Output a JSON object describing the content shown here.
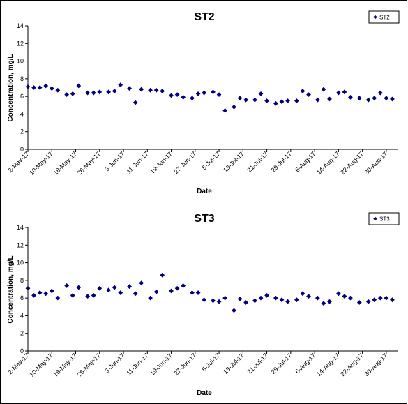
{
  "chart_data": [
    {
      "type": "scatter",
      "title": "ST2",
      "xlabel": "Date",
      "ylabel": "Concentration, mg/L",
      "ylim": [
        0,
        14
      ],
      "yticks": [
        0,
        2,
        4,
        6,
        8,
        10,
        12,
        14
      ],
      "xlim": [
        "2-May-17",
        "3-Sep-17"
      ],
      "xticks": [
        "2-May-17",
        "10-May-17",
        "18-May-17",
        "26-May-17",
        "3-Jun-17",
        "11-Jun-17",
        "19-Jun-17",
        "27-Jun-17",
        "5-Jul-17",
        "13-Jul-17",
        "21-Jul-17",
        "29-Jul-17",
        "6-Aug-17",
        "14-Aug-17",
        "22-Aug-17",
        "30-Aug-17"
      ],
      "grid": false,
      "legend_position": "top-right",
      "color": "#000080",
      "series": [
        {
          "name": "ST2",
          "x": [
            "2-May-17",
            "4-May-17",
            "6-May-17",
            "8-May-17",
            "10-May-17",
            "12-May-17",
            "15-May-17",
            "17-May-17",
            "19-May-17",
            "22-May-17",
            "24-May-17",
            "26-May-17",
            "29-May-17",
            "31-May-17",
            "2-Jun-17",
            "5-Jun-17",
            "7-Jun-17",
            "9-Jun-17",
            "12-Jun-17",
            "14-Jun-17",
            "16-Jun-17",
            "19-Jun-17",
            "21-Jun-17",
            "23-Jun-17",
            "26-Jun-17",
            "28-Jun-17",
            "30-Jun-17",
            "3-Jul-17",
            "5-Jul-17",
            "7-Jul-17",
            "10-Jul-17",
            "12-Jul-17",
            "14-Jul-17",
            "17-Jul-17",
            "19-Jul-17",
            "21-Jul-17",
            "24-Jul-17",
            "26-Jul-17",
            "28-Jul-17",
            "31-Jul-17",
            "2-Aug-17",
            "4-Aug-17",
            "7-Aug-17",
            "9-Aug-17",
            "11-Aug-17",
            "14-Aug-17",
            "16-Aug-17",
            "18-Aug-17",
            "21-Aug-17",
            "24-Aug-17",
            "26-Aug-17",
            "28-Aug-17",
            "30-Aug-17",
            "1-Sep-17"
          ],
          "y": [
            7.1,
            7.0,
            7.0,
            7.2,
            6.9,
            6.7,
            6.2,
            6.3,
            7.2,
            6.4,
            6.4,
            6.5,
            6.5,
            6.6,
            7.3,
            6.9,
            5.3,
            6.8,
            6.7,
            6.7,
            6.6,
            6.1,
            6.2,
            5.9,
            5.8,
            6.3,
            6.4,
            6.5,
            6.2,
            4.4,
            4.8,
            5.8,
            5.6,
            5.6,
            6.3,
            5.5,
            5.2,
            5.4,
            5.5,
            5.5,
            6.6,
            6.2,
            5.6,
            6.8,
            5.7,
            6.4,
            6.5,
            5.9,
            5.8,
            5.6,
            5.8,
            6.4,
            5.8,
            5.7
          ]
        }
      ]
    },
    {
      "type": "scatter",
      "title": "ST3",
      "xlabel": "Date",
      "ylabel": "Concentration, mg/L",
      "ylim": [
        0,
        14
      ],
      "yticks": [
        0,
        2,
        4,
        6,
        8,
        10,
        12,
        14
      ],
      "xlim": [
        "2-May-17",
        "3-Sep-17"
      ],
      "xticks": [
        "2-May-17",
        "10-May-17",
        "18-May-17",
        "26-May-17",
        "3-Jun-17",
        "11-Jun-17",
        "19-Jun-17",
        "27-Jun-17",
        "5-Jul-17",
        "13-Jul-17",
        "21-Jul-17",
        "29-Jul-17",
        "6-Aug-17",
        "14-Aug-17",
        "22-Aug-17",
        "30-Aug-17"
      ],
      "grid": false,
      "legend_position": "top-right",
      "color": "#000080",
      "series": [
        {
          "name": "ST3",
          "x": [
            "2-May-17",
            "4-May-17",
            "6-May-17",
            "8-May-17",
            "10-May-17",
            "12-May-17",
            "15-May-17",
            "17-May-17",
            "19-May-17",
            "22-May-17",
            "24-May-17",
            "26-May-17",
            "29-May-17",
            "31-May-17",
            "2-Jun-17",
            "5-Jun-17",
            "7-Jun-17",
            "9-Jun-17",
            "12-Jun-17",
            "14-Jun-17",
            "16-Jun-17",
            "19-Jun-17",
            "21-Jun-17",
            "23-Jun-17",
            "26-Jun-17",
            "28-Jun-17",
            "30-Jun-17",
            "3-Jul-17",
            "5-Jul-17",
            "7-Jul-17",
            "10-Jul-17",
            "12-Jul-17",
            "14-Jul-17",
            "17-Jul-17",
            "19-Jul-17",
            "21-Jul-17",
            "24-Jul-17",
            "26-Jul-17",
            "28-Jul-17",
            "31-Jul-17",
            "2-Aug-17",
            "4-Aug-17",
            "7-Aug-17",
            "9-Aug-17",
            "11-Aug-17",
            "14-Aug-17",
            "16-Aug-17",
            "18-Aug-17",
            "21-Aug-17",
            "24-Aug-17",
            "26-Aug-17",
            "28-Aug-17",
            "30-Aug-17",
            "1-Sep-17"
          ],
          "y": [
            7.1,
            6.3,
            6.6,
            6.5,
            6.8,
            6.0,
            7.4,
            6.3,
            7.2,
            6.2,
            6.3,
            7.1,
            6.9,
            7.2,
            6.6,
            7.3,
            6.5,
            7.7,
            6.0,
            6.7,
            8.6,
            6.8,
            7.1,
            7.4,
            6.6,
            6.6,
            5.8,
            5.7,
            5.6,
            6.0,
            4.6,
            5.9,
            5.5,
            5.7,
            6.0,
            6.3,
            6.0,
            5.8,
            5.6,
            5.8,
            6.5,
            6.2,
            6.0,
            5.4,
            5.6,
            6.5,
            6.2,
            6.0,
            5.5,
            5.6,
            5.8,
            6.0,
            6.0,
            5.8
          ]
        }
      ]
    }
  ]
}
